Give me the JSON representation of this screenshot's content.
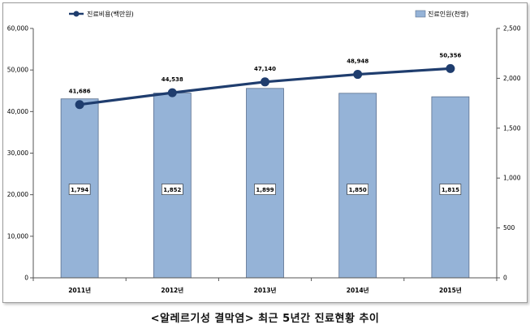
{
  "chart_data": {
    "type": "bar+line",
    "categories": [
      "2011년",
      "2012년",
      "2013년",
      "2014년",
      "2015년"
    ],
    "series": [
      {
        "name": "진료인원(천명)",
        "type": "bar",
        "axis": "right",
        "values": [
          1794,
          1852,
          1899,
          1850,
          1815
        ],
        "labels": [
          "1,794",
          "1,852",
          "1,899",
          "1,850",
          "1,815"
        ],
        "color": "#95b3d7"
      },
      {
        "name": "진료비용(백만원)",
        "type": "line",
        "axis": "left",
        "values": [
          41686,
          44538,
          47140,
          48948,
          50356
        ],
        "labels": [
          "41,686",
          "44,538",
          "47,140",
          "48,948",
          "50,356"
        ],
        "color": "#1f3d6e"
      }
    ],
    "y_left": {
      "min": 0,
      "max": 60000,
      "step": 10000,
      "ticks": [
        "0",
        "10,000",
        "20,000",
        "30,000",
        "40,000",
        "50,000",
        "60,000"
      ]
    },
    "y_right": {
      "min": 0,
      "max": 2500,
      "step": 500,
      "ticks": [
        "0",
        "500",
        "1,000",
        "1,500",
        "2,000",
        "2,500"
      ]
    },
    "legend_placement": "top",
    "grid": false
  },
  "caption": "<알레르기성 결막염> 최근 5년간 진료현황 추이"
}
